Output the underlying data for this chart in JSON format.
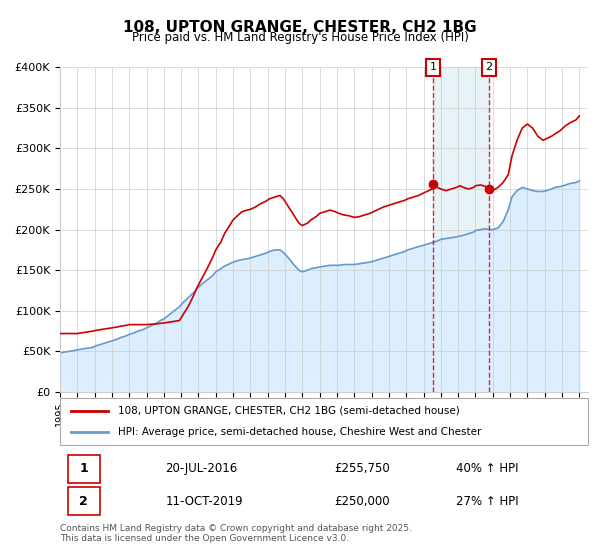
{
  "title": "108, UPTON GRANGE, CHESTER, CH2 1BG",
  "subtitle": "Price paid vs. HM Land Registry's House Price Index (HPI)",
  "xlabel": "",
  "ylabel": "",
  "ylim": [
    0,
    400000
  ],
  "yticks": [
    0,
    50000,
    100000,
    150000,
    200000,
    250000,
    300000,
    350000,
    400000
  ],
  "ytick_labels": [
    "£0",
    "£50K",
    "£100K",
    "£150K",
    "£200K",
    "£250K",
    "£300K",
    "£350K",
    "£400K"
  ],
  "xlim_start": 1995.0,
  "xlim_end": 2025.5,
  "xticks": [
    1995,
    1996,
    1997,
    1998,
    1999,
    2000,
    2001,
    2002,
    2003,
    2004,
    2005,
    2006,
    2007,
    2008,
    2009,
    2010,
    2011,
    2012,
    2013,
    2014,
    2015,
    2016,
    2017,
    2018,
    2019,
    2020,
    2021,
    2022,
    2023,
    2024,
    2025
  ],
  "grid_color": "#cccccc",
  "bg_color": "#ffffff",
  "plot_bg_color": "#ffffff",
  "property_color": "#cc0000",
  "hpi_color": "#6699cc",
  "hpi_fill_color": "#ddeeff",
  "event1_x": 2016.55,
  "event1_y": 255750,
  "event2_x": 2019.78,
  "event2_y": 250000,
  "event1_label": "1",
  "event2_label": "2",
  "event1_date": "20-JUL-2016",
  "event1_price": "£255,750",
  "event1_hpi": "40% ↑ HPI",
  "event2_date": "11-OCT-2019",
  "event2_price": "£250,000",
  "event2_hpi": "27% ↑ HPI",
  "legend1_label": "108, UPTON GRANGE, CHESTER, CH2 1BG (semi-detached house)",
  "legend2_label": "HPI: Average price, semi-detached house, Cheshire West and Chester",
  "footnote": "Contains HM Land Registry data © Crown copyright and database right 2025.\nThis data is licensed under the Open Government Licence v3.0.",
  "property_data_x": [
    1995.0,
    1995.2,
    1995.5,
    1995.8,
    1996.0,
    1996.3,
    1996.6,
    1996.9,
    1997.1,
    1997.4,
    1997.7,
    1998.0,
    1998.3,
    1998.5,
    1998.8,
    1999.0,
    1999.3,
    1999.5,
    1999.8,
    2000.0,
    2000.3,
    2000.6,
    2000.8,
    2001.0,
    2001.3,
    2001.6,
    2001.9,
    2002.1,
    2002.4,
    2002.7,
    2002.9,
    2003.2,
    2003.5,
    2003.8,
    2004.0,
    2004.3,
    2004.5,
    2004.8,
    2005.0,
    2005.3,
    2005.5,
    2005.8,
    2006.0,
    2006.3,
    2006.6,
    2006.9,
    2007.1,
    2007.4,
    2007.7,
    2007.9,
    2008.2,
    2008.5,
    2008.8,
    2009.0,
    2009.3,
    2009.5,
    2009.8,
    2010.0,
    2010.3,
    2010.6,
    2010.9,
    2011.1,
    2011.4,
    2011.7,
    2012.0,
    2012.3,
    2012.6,
    2012.9,
    2013.1,
    2013.4,
    2013.7,
    2014.0,
    2014.3,
    2014.6,
    2014.9,
    2015.1,
    2015.4,
    2015.7,
    2015.9,
    2016.2,
    2016.5,
    2016.55,
    2016.8,
    2017.0,
    2017.3,
    2017.6,
    2017.9,
    2018.1,
    2018.3,
    2018.6,
    2018.9,
    2019.0,
    2019.3,
    2019.6,
    2019.78,
    2020.0,
    2020.3,
    2020.6,
    2020.9,
    2021.1,
    2021.4,
    2021.7,
    2022.0,
    2022.3,
    2022.6,
    2022.9,
    2023.1,
    2023.4,
    2023.6,
    2023.9,
    2024.2,
    2024.5,
    2024.8,
    2025.0
  ],
  "property_data_y": [
    72000,
    72000,
    72000,
    72000,
    72000,
    73000,
    74000,
    75000,
    76000,
    77000,
    78000,
    79000,
    80000,
    81000,
    82000,
    83000,
    83000,
    83000,
    83000,
    83000,
    83500,
    84000,
    84500,
    85000,
    86000,
    87000,
    88000,
    95000,
    105000,
    118000,
    128000,
    140000,
    152000,
    165000,
    175000,
    185000,
    195000,
    205000,
    212000,
    218000,
    222000,
    224000,
    225000,
    228000,
    232000,
    235000,
    238000,
    240000,
    242000,
    238000,
    228000,
    218000,
    208000,
    205000,
    208000,
    212000,
    216000,
    220000,
    222000,
    224000,
    222000,
    220000,
    218000,
    217000,
    215000,
    216000,
    218000,
    220000,
    222000,
    225000,
    228000,
    230000,
    232000,
    234000,
    236000,
    238000,
    240000,
    242000,
    244000,
    247000,
    250000,
    255750,
    252000,
    250000,
    248000,
    250000,
    252000,
    254000,
    252000,
    250000,
    252000,
    254000,
    255000,
    253000,
    250000,
    248000,
    252000,
    258000,
    268000,
    290000,
    310000,
    325000,
    330000,
    325000,
    315000,
    310000,
    312000,
    315000,
    318000,
    322000,
    328000,
    332000,
    335000,
    340000
  ],
  "hpi_data_x": [
    1995.0,
    1995.2,
    1995.5,
    1995.8,
    1996.0,
    1996.3,
    1996.6,
    1996.9,
    1997.1,
    1997.4,
    1997.7,
    1998.0,
    1998.3,
    1998.5,
    1998.8,
    1999.0,
    1999.3,
    1999.5,
    1999.8,
    2000.0,
    2000.3,
    2000.6,
    2000.8,
    2001.0,
    2001.3,
    2001.6,
    2001.9,
    2002.1,
    2002.4,
    2002.7,
    2002.9,
    2003.2,
    2003.5,
    2003.8,
    2004.0,
    2004.3,
    2004.5,
    2004.8,
    2005.0,
    2005.3,
    2005.5,
    2005.8,
    2006.0,
    2006.3,
    2006.6,
    2006.9,
    2007.1,
    2007.4,
    2007.7,
    2007.9,
    2008.2,
    2008.5,
    2008.8,
    2009.0,
    2009.3,
    2009.5,
    2009.8,
    2010.0,
    2010.3,
    2010.6,
    2010.9,
    2011.1,
    2011.4,
    2011.7,
    2012.0,
    2012.3,
    2012.6,
    2012.9,
    2013.1,
    2013.4,
    2013.7,
    2014.0,
    2014.3,
    2014.6,
    2014.9,
    2015.1,
    2015.4,
    2015.7,
    2015.9,
    2016.2,
    2016.5,
    2016.8,
    2017.0,
    2017.3,
    2017.6,
    2017.9,
    2018.1,
    2018.3,
    2018.6,
    2018.9,
    2019.0,
    2019.3,
    2019.6,
    2019.78,
    2020.0,
    2020.3,
    2020.6,
    2020.9,
    2021.1,
    2021.4,
    2021.7,
    2022.0,
    2022.3,
    2022.6,
    2022.9,
    2023.1,
    2023.4,
    2023.6,
    2023.9,
    2024.2,
    2024.5,
    2024.8,
    2025.0
  ],
  "hpi_data_y": [
    48000,
    49000,
    50000,
    51000,
    52000,
    53000,
    54000,
    55000,
    57000,
    59000,
    61000,
    63000,
    65000,
    67000,
    69000,
    71000,
    73000,
    75000,
    77000,
    79000,
    82000,
    85000,
    88000,
    90000,
    95000,
    100000,
    105000,
    110000,
    116000,
    122000,
    127000,
    133000,
    138000,
    143000,
    148000,
    152000,
    155000,
    158000,
    160000,
    162000,
    163000,
    164000,
    165000,
    167000,
    169000,
    171000,
    173000,
    175000,
    175000,
    172000,
    165000,
    157000,
    150000,
    148000,
    150000,
    152000,
    153000,
    154000,
    155000,
    156000,
    156000,
    156000,
    157000,
    157000,
    157000,
    158000,
    159000,
    160000,
    161000,
    163000,
    165000,
    167000,
    169000,
    171000,
    173000,
    175000,
    177000,
    179000,
    180000,
    182000,
    184000,
    186000,
    188000,
    189000,
    190000,
    191000,
    192000,
    193000,
    195000,
    197000,
    199000,
    200000,
    201000,
    200000,
    200000,
    202000,
    210000,
    225000,
    240000,
    248000,
    252000,
    250000,
    248000,
    247000,
    247000,
    248000,
    250000,
    252000,
    253000,
    255000,
    257000,
    258000,
    260000
  ]
}
